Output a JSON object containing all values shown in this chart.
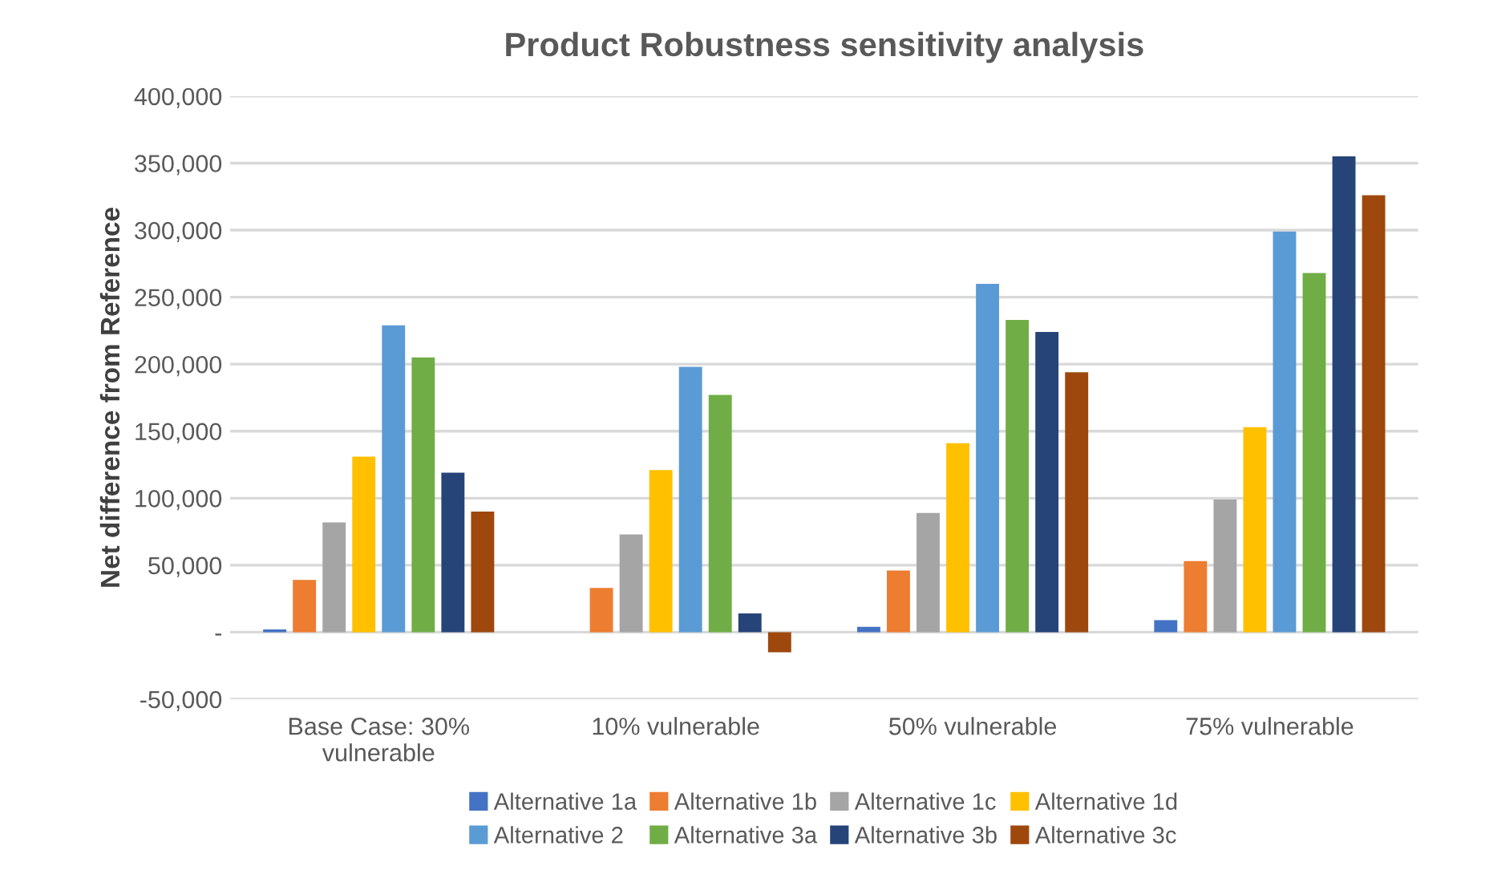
{
  "chart_data": {
    "type": "bar",
    "title": "Product Robustness sensitivity analysis",
    "ylabel": "Net difference from Reference",
    "categories": [
      "Base Case: 30%\nvulnerable",
      "10% vulnerable",
      "50% vulnerable",
      "75% vulnerable"
    ],
    "series": [
      {
        "name": "Alternative 1a",
        "color": "#4472c4",
        "values": [
          2000,
          0,
          4000,
          9000
        ]
      },
      {
        "name": "Alternative 1b",
        "color": "#ed7d31",
        "values": [
          39000,
          33000,
          46000,
          53000
        ]
      },
      {
        "name": "Alternative 1c",
        "color": "#a5a5a5",
        "values": [
          82000,
          73000,
          89000,
          99000
        ]
      },
      {
        "name": "Alternative 1d",
        "color": "#ffc000",
        "values": [
          131000,
          121000,
          141000,
          153000
        ]
      },
      {
        "name": "Alternative 2",
        "color": "#5b9bd5",
        "values": [
          229000,
          198000,
          260000,
          299000
        ]
      },
      {
        "name": "Alternative 3a",
        "color": "#70ad47",
        "values": [
          205000,
          177000,
          233000,
          268000
        ]
      },
      {
        "name": "Alternative 3b",
        "color": "#264478",
        "values": [
          119000,
          14000,
          224000,
          355000
        ]
      },
      {
        "name": "Alternative 3c",
        "color": "#9e480e",
        "values": [
          90000,
          -15000,
          194000,
          326000
        ]
      }
    ],
    "ylim": [
      -50000,
      400000
    ],
    "yticks": [
      {
        "value": -50000,
        "label": "-50,000"
      },
      {
        "value": 0,
        "label": "-"
      },
      {
        "value": 50000,
        "label": "50,000"
      },
      {
        "value": 100000,
        "label": "100,000"
      },
      {
        "value": 150000,
        "label": "150,000"
      },
      {
        "value": 200000,
        "label": "200,000"
      },
      {
        "value": 250000,
        "label": "250,000"
      },
      {
        "value": 300000,
        "label": "300,000"
      },
      {
        "value": 350000,
        "label": "350,000"
      },
      {
        "value": 400000,
        "label": "400,000"
      }
    ],
    "grid": "y",
    "legend": "bottom"
  }
}
